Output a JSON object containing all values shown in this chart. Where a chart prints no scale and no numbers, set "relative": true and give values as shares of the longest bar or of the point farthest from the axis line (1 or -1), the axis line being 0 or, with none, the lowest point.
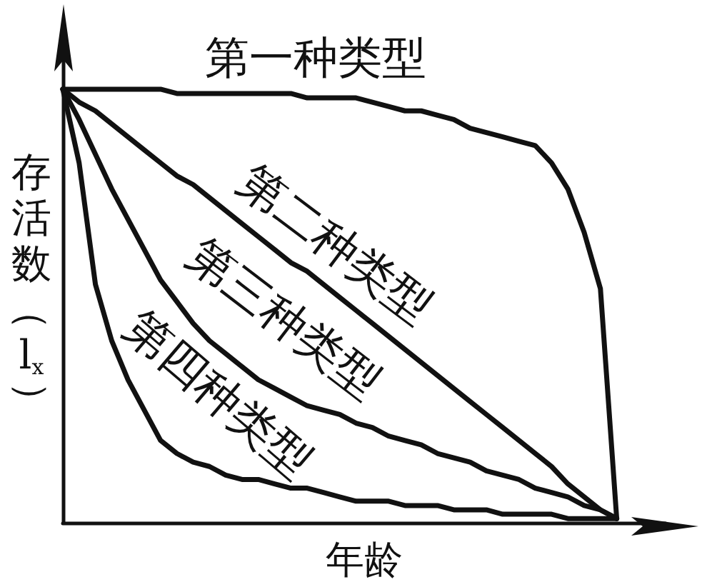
{
  "chart_data": {
    "type": "line",
    "xlabel": "年龄",
    "ylabel": "存活数（l$_{x}$）",
    "relative": true,
    "categories": [
      null,
      null,
      null,
      null,
      null,
      null,
      null,
      null,
      null,
      null,
      null,
      null,
      null,
      null,
      null,
      null,
      null,
      null,
      null,
      null,
      null,
      null,
      null,
      null,
      null,
      null,
      null,
      null,
      null,
      null,
      null,
      null,
      null,
      null,
      null,
      null,
      null,
      null
    ],
    "series": [
      {
        "name": "第一种类型",
        "color": "#111111",
        "values": [
          1,
          1,
          1,
          1,
          1,
          1,
          1,
          0.99,
          0.99,
          0.99,
          0.99,
          0.99,
          0.99,
          0.99,
          0.99,
          0.98,
          0.98,
          0.98,
          0.98,
          0.97,
          0.96,
          0.95,
          0.95,
          0.94,
          0.93,
          0.91,
          0.9,
          0.89,
          0.88,
          0.87,
          0.83,
          0.77,
          0.67,
          0.54,
          0.01,
          null,
          null,
          null
        ]
      },
      {
        "name": "第二种类型",
        "color": "#111111",
        "values": [
          1,
          0.97,
          0.95,
          0.92,
          0.89,
          0.86,
          0.83,
          0.8,
          0.78,
          0.75,
          0.72,
          0.69,
          0.66,
          0.63,
          0.6,
          0.58,
          0.55,
          0.52,
          0.49,
          0.46,
          0.43,
          0.4,
          0.37,
          0.34,
          0.31,
          0.28,
          0.25,
          0.22,
          0.19,
          0.16,
          0.13,
          0.09,
          0.06,
          0.03,
          0.01,
          null,
          null,
          null
        ]
      },
      {
        "name": "第三种类型",
        "color": "#111111",
        "values": [
          1,
          0.93,
          0.85,
          0.77,
          0.7,
          0.63,
          0.56,
          0.51,
          0.46,
          0.42,
          0.39,
          0.36,
          0.33,
          0.31,
          0.29,
          0.27,
          0.26,
          0.25,
          0.23,
          0.22,
          0.2,
          0.19,
          0.18,
          0.16,
          0.15,
          0.14,
          0.12,
          0.11,
          0.1,
          0.08,
          0.07,
          0.06,
          0.04,
          0.03,
          0.01,
          null,
          null,
          null
        ]
      },
      {
        "name": "第四种类型",
        "color": "#111111",
        "values": [
          1,
          0.83,
          0.55,
          0.42,
          0.33,
          0.26,
          0.19,
          0.16,
          0.14,
          0.13,
          0.11,
          0.1,
          0.1,
          0.09,
          0.08,
          0.08,
          0.07,
          0.06,
          0.05,
          0.05,
          0.05,
          0.04,
          0.04,
          0.04,
          0.03,
          0.03,
          0.03,
          0.02,
          0.02,
          0.02,
          0.02,
          0.01,
          0.01,
          0.01,
          0.01,
          null,
          null,
          null
        ]
      }
    ]
  }
}
